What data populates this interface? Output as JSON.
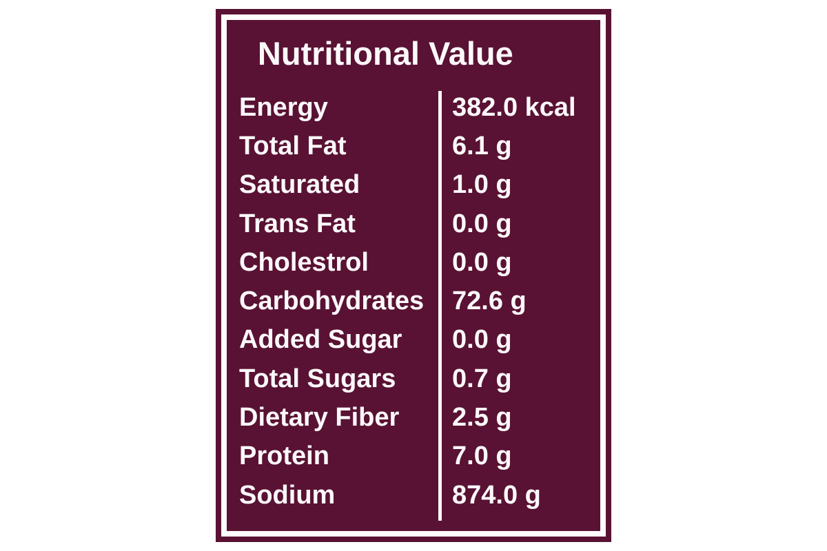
{
  "label": {
    "title": "Nutritional Value",
    "rows": [
      {
        "name": "Energy",
        "value": "382.0 kcal"
      },
      {
        "name": "Total Fat",
        "value": "6.1 g"
      },
      {
        "name": "Saturated",
        "value": "1.0 g"
      },
      {
        "name": "Trans Fat",
        "value": "0.0 g"
      },
      {
        "name": "Cholestrol",
        "value": "0.0 g"
      },
      {
        "name": "Carbohydrates",
        "value": "72.6 g"
      },
      {
        "name": "Added Sugar",
        "value": "0.0 g"
      },
      {
        "name": "Total Sugars",
        "value": "0.7 g"
      },
      {
        "name": "Dietary Fiber",
        "value": "2.5 g"
      },
      {
        "name": "Protein",
        "value": "7.0 g"
      },
      {
        "name": "Sodium",
        "value": "874.0 g"
      }
    ],
    "colors": {
      "panel_background": "#591233",
      "border_and_divider": "#fefcfd",
      "text": "#fbf8fa",
      "page_background": "#ffffff"
    }
  }
}
